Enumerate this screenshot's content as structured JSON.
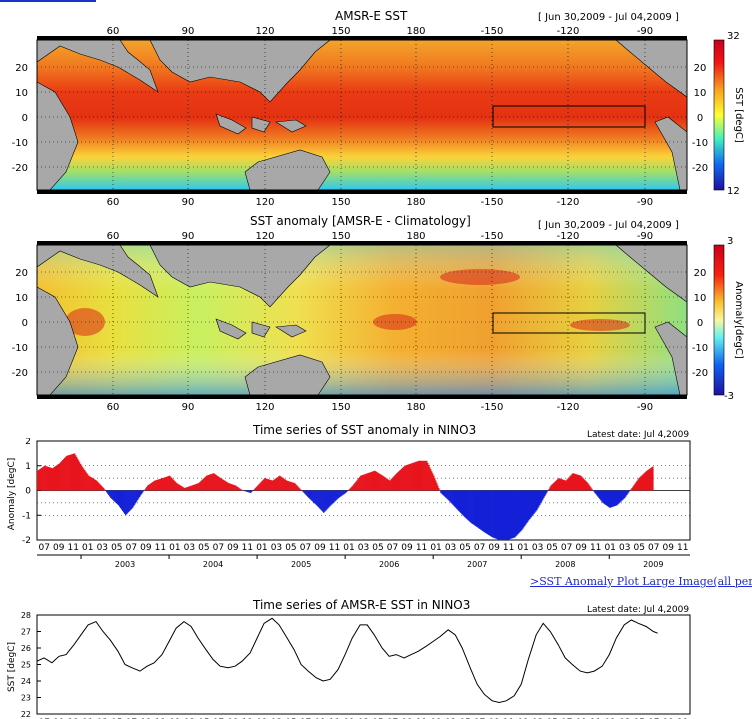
{
  "header": {
    "link_color": "#1a32c8"
  },
  "map1": {
    "title": "AMSR-E SST",
    "date_range": "[ Jun 30,2009 - Jul 04,2009 ]",
    "lon_ticks": [
      "60",
      "90",
      "120",
      "150",
      "180",
      "-150",
      "-120",
      "-90"
    ],
    "lat_ticks": [
      "20",
      "10",
      "0",
      "-10",
      "-20"
    ],
    "colorbar_label": "SST [degC]",
    "colorbar_max": "32",
    "colorbar_min": "12",
    "colorbar_ticks": [
      "20",
      "10",
      "0",
      "-10",
      "-20"
    ]
  },
  "map2": {
    "title": "SST anomaly [AMSR-E - Climatology]",
    "date_range": "[ Jun 30,2009 - Jul 04,2009 ]",
    "lon_ticks": [
      "60",
      "90",
      "120",
      "150",
      "180",
      "-150",
      "-120",
      "-90"
    ],
    "lat_ticks": [
      "20",
      "10",
      "0",
      "-10",
      "-20"
    ],
    "colorbar_label": "Anomaly[degC]",
    "colorbar_max": "3",
    "colorbar_min": "-3",
    "colorbar_ticks": [
      "20",
      "10",
      "0",
      "-10",
      "-20"
    ]
  },
  "chart_data": [
    {
      "type": "bar",
      "title": "Time series of SST anomaly in NINO3",
      "latest_date": "Latest date: Jul  4,2009",
      "xlabel": "",
      "ylabel": "Anomaly [degC]",
      "ylim": [
        -2,
        2
      ],
      "yticks": [
        "2",
        "1",
        "0",
        "-1",
        "-2"
      ],
      "month_ticks": [
        "07",
        "09",
        "11",
        "01",
        "03",
        "05",
        "07",
        "09",
        "11",
        "01",
        "03",
        "05",
        "07",
        "09",
        "11",
        "01",
        "03",
        "05",
        "07",
        "09",
        "11",
        "01",
        "03",
        "05",
        "07",
        "09",
        "11",
        "01",
        "03",
        "05",
        "07",
        "09",
        "11",
        "01",
        "03",
        "05",
        "07",
        "09",
        "11",
        "01",
        "03",
        "05",
        "07",
        "09",
        "11"
      ],
      "years": [
        "2003",
        "2004",
        "2005",
        "2006",
        "2007",
        "2008",
        "2009"
      ],
      "positive_color": "#e8141c",
      "negative_color": "#1420d8",
      "x_start": 2002.5,
      "x_end": 2009.917,
      "series_x": [
        2002.5,
        2002.58,
        2002.67,
        2002.75,
        2002.83,
        2002.92,
        2003.0,
        2003.08,
        2003.17,
        2003.25,
        2003.33,
        2003.42,
        2003.5,
        2003.58,
        2003.67,
        2003.75,
        2003.83,
        2003.92,
        2004.0,
        2004.08,
        2004.17,
        2004.25,
        2004.33,
        2004.42,
        2004.5,
        2004.58,
        2004.67,
        2004.75,
        2004.83,
        2004.92,
        2005.0,
        2005.08,
        2005.17,
        2005.25,
        2005.33,
        2005.42,
        2005.5,
        2005.58,
        2005.67,
        2005.75,
        2005.83,
        2005.92,
        2006.0,
        2006.08,
        2006.17,
        2006.25,
        2006.33,
        2006.42,
        2006.5,
        2006.58,
        2006.67,
        2006.75,
        2006.83,
        2006.92,
        2007.0,
        2007.08,
        2007.17,
        2007.25,
        2007.33,
        2007.42,
        2007.5,
        2007.58,
        2007.67,
        2007.75,
        2007.83,
        2007.92,
        2008.0,
        2008.08,
        2008.17,
        2008.25,
        2008.33,
        2008.42,
        2008.5,
        2008.58,
        2008.67,
        2008.75,
        2008.83,
        2008.92,
        2009.0,
        2009.08,
        2009.17,
        2009.25,
        2009.33,
        2009.42,
        2009.5
      ],
      "series_y": [
        0.8,
        1.0,
        0.9,
        1.1,
        1.4,
        1.5,
        1.0,
        0.6,
        0.4,
        0.1,
        -0.3,
        -0.6,
        -1.0,
        -0.7,
        -0.2,
        0.2,
        0.4,
        0.5,
        0.6,
        0.3,
        0.1,
        0.2,
        0.3,
        0.6,
        0.7,
        0.5,
        0.3,
        0.2,
        0.0,
        -0.1,
        0.2,
        0.5,
        0.4,
        0.6,
        0.4,
        0.3,
        0.0,
        -0.3,
        -0.6,
        -0.9,
        -0.6,
        -0.3,
        -0.1,
        0.2,
        0.6,
        0.7,
        0.8,
        0.6,
        0.4,
        0.7,
        1.0,
        1.1,
        1.2,
        1.2,
        0.6,
        -0.1,
        -0.4,
        -0.7,
        -1.0,
        -1.3,
        -1.5,
        -1.7,
        -1.9,
        -2.0,
        -2.0,
        -1.9,
        -1.6,
        -1.2,
        -0.8,
        -0.3,
        0.2,
        0.5,
        0.4,
        0.7,
        0.6,
        0.3,
        -0.1,
        -0.5,
        -0.7,
        -0.6,
        -0.3,
        0.1,
        0.5,
        0.8,
        1.0
      ]
    },
    {
      "type": "line",
      "title": "Time series of AMSR-E SST in NINO3",
      "latest_date": "Latest date: Jul  4,2009",
      "xlabel": "",
      "ylabel": "SST [degC]",
      "ylim": [
        22,
        28
      ],
      "yticks": [
        "28",
        "27",
        "26",
        "25",
        "24",
        "23",
        "22"
      ],
      "x_start": 2002.5,
      "x_end": 2009.917,
      "series_x": [
        2002.5,
        2002.58,
        2002.67,
        2002.75,
        2002.83,
        2002.92,
        2003.0,
        2003.08,
        2003.17,
        2003.25,
        2003.33,
        2003.42,
        2003.5,
        2003.58,
        2003.67,
        2003.75,
        2003.83,
        2003.92,
        2004.0,
        2004.08,
        2004.17,
        2004.25,
        2004.33,
        2004.42,
        2004.5,
        2004.58,
        2004.67,
        2004.75,
        2004.83,
        2004.92,
        2005.0,
        2005.08,
        2005.17,
        2005.25,
        2005.33,
        2005.42,
        2005.5,
        2005.58,
        2005.67,
        2005.75,
        2005.83,
        2005.92,
        2006.0,
        2006.08,
        2006.17,
        2006.25,
        2006.33,
        2006.42,
        2006.5,
        2006.58,
        2006.67,
        2006.75,
        2006.83,
        2006.92,
        2007.0,
        2007.08,
        2007.17,
        2007.25,
        2007.33,
        2007.42,
        2007.5,
        2007.58,
        2007.67,
        2007.75,
        2007.83,
        2007.92,
        2008.0,
        2008.08,
        2008.17,
        2008.25,
        2008.33,
        2008.42,
        2008.5,
        2008.58,
        2008.67,
        2008.75,
        2008.83,
        2008.92,
        2009.0,
        2009.08,
        2009.17,
        2009.25,
        2009.33,
        2009.42,
        2009.5,
        2009.55
      ],
      "series_y": [
        25.2,
        25.4,
        25.1,
        25.5,
        25.6,
        26.2,
        26.8,
        27.4,
        27.6,
        27.0,
        26.5,
        25.8,
        25.0,
        24.8,
        24.6,
        24.9,
        25.1,
        25.6,
        26.4,
        27.2,
        27.6,
        27.3,
        26.6,
        25.9,
        25.3,
        24.9,
        24.8,
        24.9,
        25.2,
        25.7,
        26.6,
        27.5,
        27.8,
        27.4,
        26.7,
        25.9,
        25.0,
        24.6,
        24.2,
        24.0,
        24.1,
        24.7,
        25.6,
        26.6,
        27.4,
        27.4,
        26.8,
        26.0,
        25.5,
        25.6,
        25.4,
        25.6,
        25.8,
        26.1,
        26.4,
        26.7,
        27.1,
        26.8,
        26.0,
        24.8,
        23.8,
        23.2,
        22.8,
        22.7,
        22.8,
        23.1,
        23.8,
        25.3,
        26.8,
        27.5,
        27.0,
        26.2,
        25.4,
        25.0,
        24.6,
        24.5,
        24.6,
        24.9,
        25.6,
        26.6,
        27.4,
        27.7,
        27.5,
        27.3,
        27.0,
        26.9
      ]
    }
  ],
  "footer": {
    "link_text": ">SST Anomaly Plot Large Image(all periods)"
  }
}
